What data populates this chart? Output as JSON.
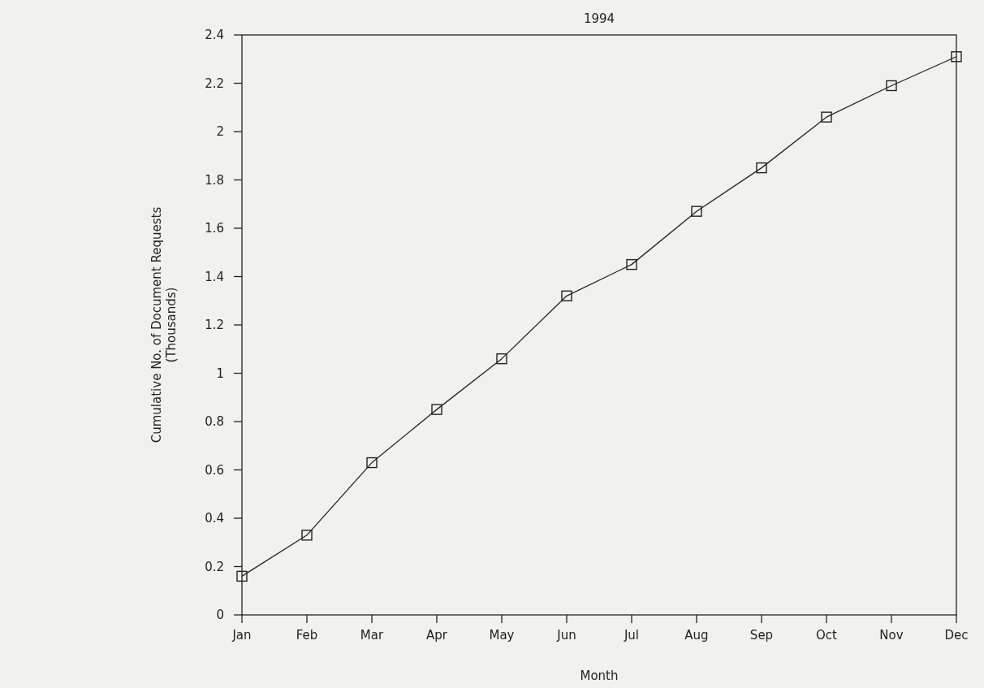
{
  "chart_data": {
    "type": "line",
    "title": "1994",
    "xlabel": "Month",
    "ylabel": "Cumulative No. of Document Requests\n(Thousands)",
    "categories": [
      "Jan",
      "Feb",
      "Mar",
      "Apr",
      "May",
      "Jun",
      "Jul",
      "Aug",
      "Sep",
      "Oct",
      "Nov",
      "Dec"
    ],
    "series": [
      {
        "color": "#222222",
        "values": [
          0.16,
          0.33,
          0.63,
          0.85,
          1.06,
          1.32,
          1.45,
          1.67,
          1.85,
          2.06,
          2.19,
          2.31
        ]
      }
    ],
    "ylim": [
      0,
      2.4
    ],
    "yticks": [
      0,
      0.2,
      0.4,
      0.6,
      0.8,
      1,
      1.2,
      1.4,
      1.6,
      1.8,
      2,
      2.2,
      2.4
    ],
    "marker": "square",
    "line_style": "solid",
    "grid": false
  }
}
